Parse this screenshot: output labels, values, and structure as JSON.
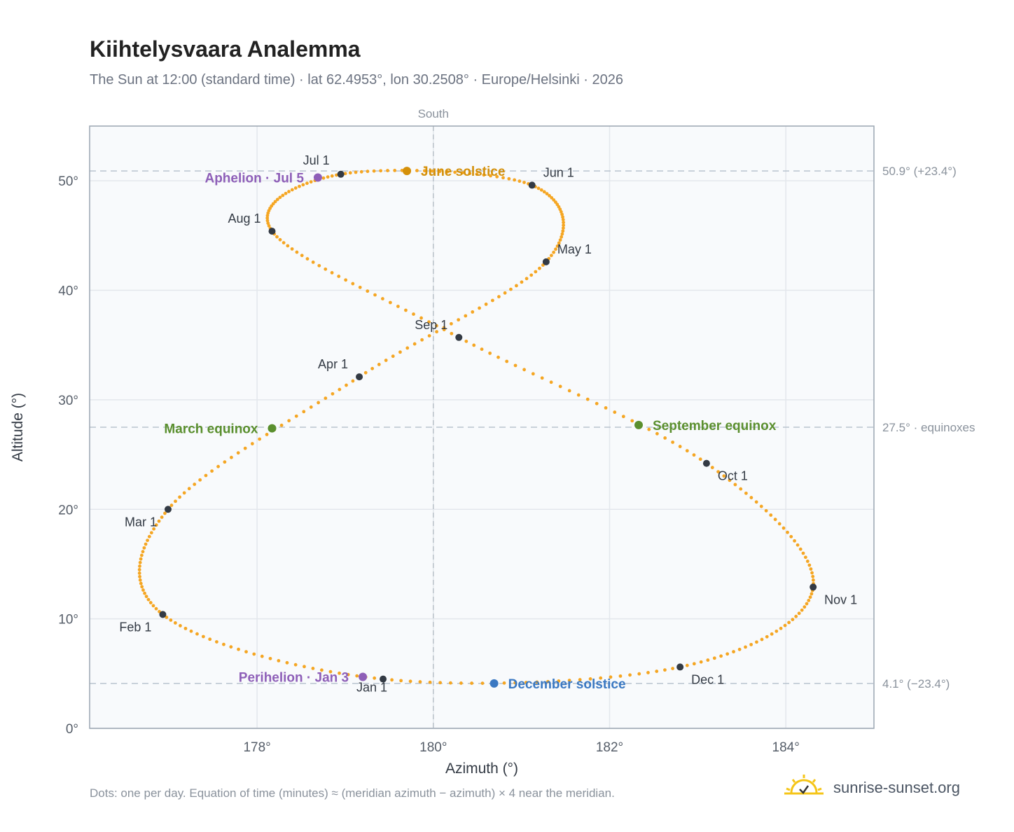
{
  "title": "Kiihtelysvaara Analemma",
  "subtitle": "The Sun at 12:00 (standard time) · lat 62.4953°, lon 30.2508° · Europe/Helsinki · 2026",
  "footnote": "Dots: one per day. Equation of time (minutes) ≈ (meridian azimuth − azimuth) × 4 near the meridian.",
  "brand": {
    "text": "sunrise-sunset.org",
    "icon": "sun-check-icon"
  },
  "chart_data": {
    "type": "scatter",
    "xlabel": "Azimuth (°)",
    "ylabel": "Altitude (°)",
    "xlim": [
      176.1,
      185.0
    ],
    "ylim": [
      0,
      55
    ],
    "x_ticks": [
      178,
      180,
      182,
      184
    ],
    "x_tick_labels": [
      "178°",
      "180°",
      "182°",
      "184°"
    ],
    "y_ticks": [
      0,
      10,
      20,
      30,
      40,
      50
    ],
    "y_tick_labels": [
      "0°",
      "10°",
      "20°",
      "30°",
      "40°",
      "50°"
    ],
    "grid": true,
    "meridian": {
      "x": 180,
      "label": "South"
    },
    "reference_lines": [
      {
        "y": 50.9,
        "label": "50.9° (+23.4°)"
      },
      {
        "y": 27.5,
        "label": "27.5° · equinoxes"
      },
      {
        "y": 4.1,
        "label": "4.1° (−23.4°)"
      }
    ],
    "curve_color": "#f5a623",
    "month_markers": [
      {
        "label": "Jan 1",
        "x": 179.43,
        "y": 4.5
      },
      {
        "label": "Feb 1",
        "x": 176.93,
        "y": 10.4
      },
      {
        "label": "Mar 1",
        "x": 176.99,
        "y": 20.0
      },
      {
        "label": "Apr 1",
        "x": 179.16,
        "y": 32.1
      },
      {
        "label": "May 1",
        "x": 181.28,
        "y": 42.6
      },
      {
        "label": "Jun 1",
        "x": 181.12,
        "y": 49.6
      },
      {
        "label": "Jul 1",
        "x": 178.95,
        "y": 50.6
      },
      {
        "label": "Aug 1",
        "x": 178.17,
        "y": 45.4
      },
      {
        "label": "Sep 1",
        "x": 180.29,
        "y": 35.7
      },
      {
        "label": "Oct 1",
        "x": 183.1,
        "y": 24.2
      },
      {
        "label": "Nov 1",
        "x": 184.31,
        "y": 12.9
      },
      {
        "label": "Dec 1",
        "x": 182.8,
        "y": 5.6
      }
    ],
    "events": [
      {
        "label": "June solstice",
        "x": 179.7,
        "y": 50.9,
        "color": "#d4900a"
      },
      {
        "label": "Aphelion · Jul 5",
        "x": 178.69,
        "y": 50.3,
        "color": "#8e5fb8"
      },
      {
        "label": "March equinox",
        "x": 178.17,
        "y": 27.4,
        "color": "#5a8f2e"
      },
      {
        "label": "September equinox",
        "x": 182.33,
        "y": 27.7,
        "color": "#5a8f2e"
      },
      {
        "label": "Perihelion · Jan 3",
        "x": 179.2,
        "y": 4.7,
        "color": "#8e5fb8"
      },
      {
        "label": "December solstice",
        "x": 180.69,
        "y": 4.1,
        "color": "#3a78c2"
      }
    ]
  }
}
